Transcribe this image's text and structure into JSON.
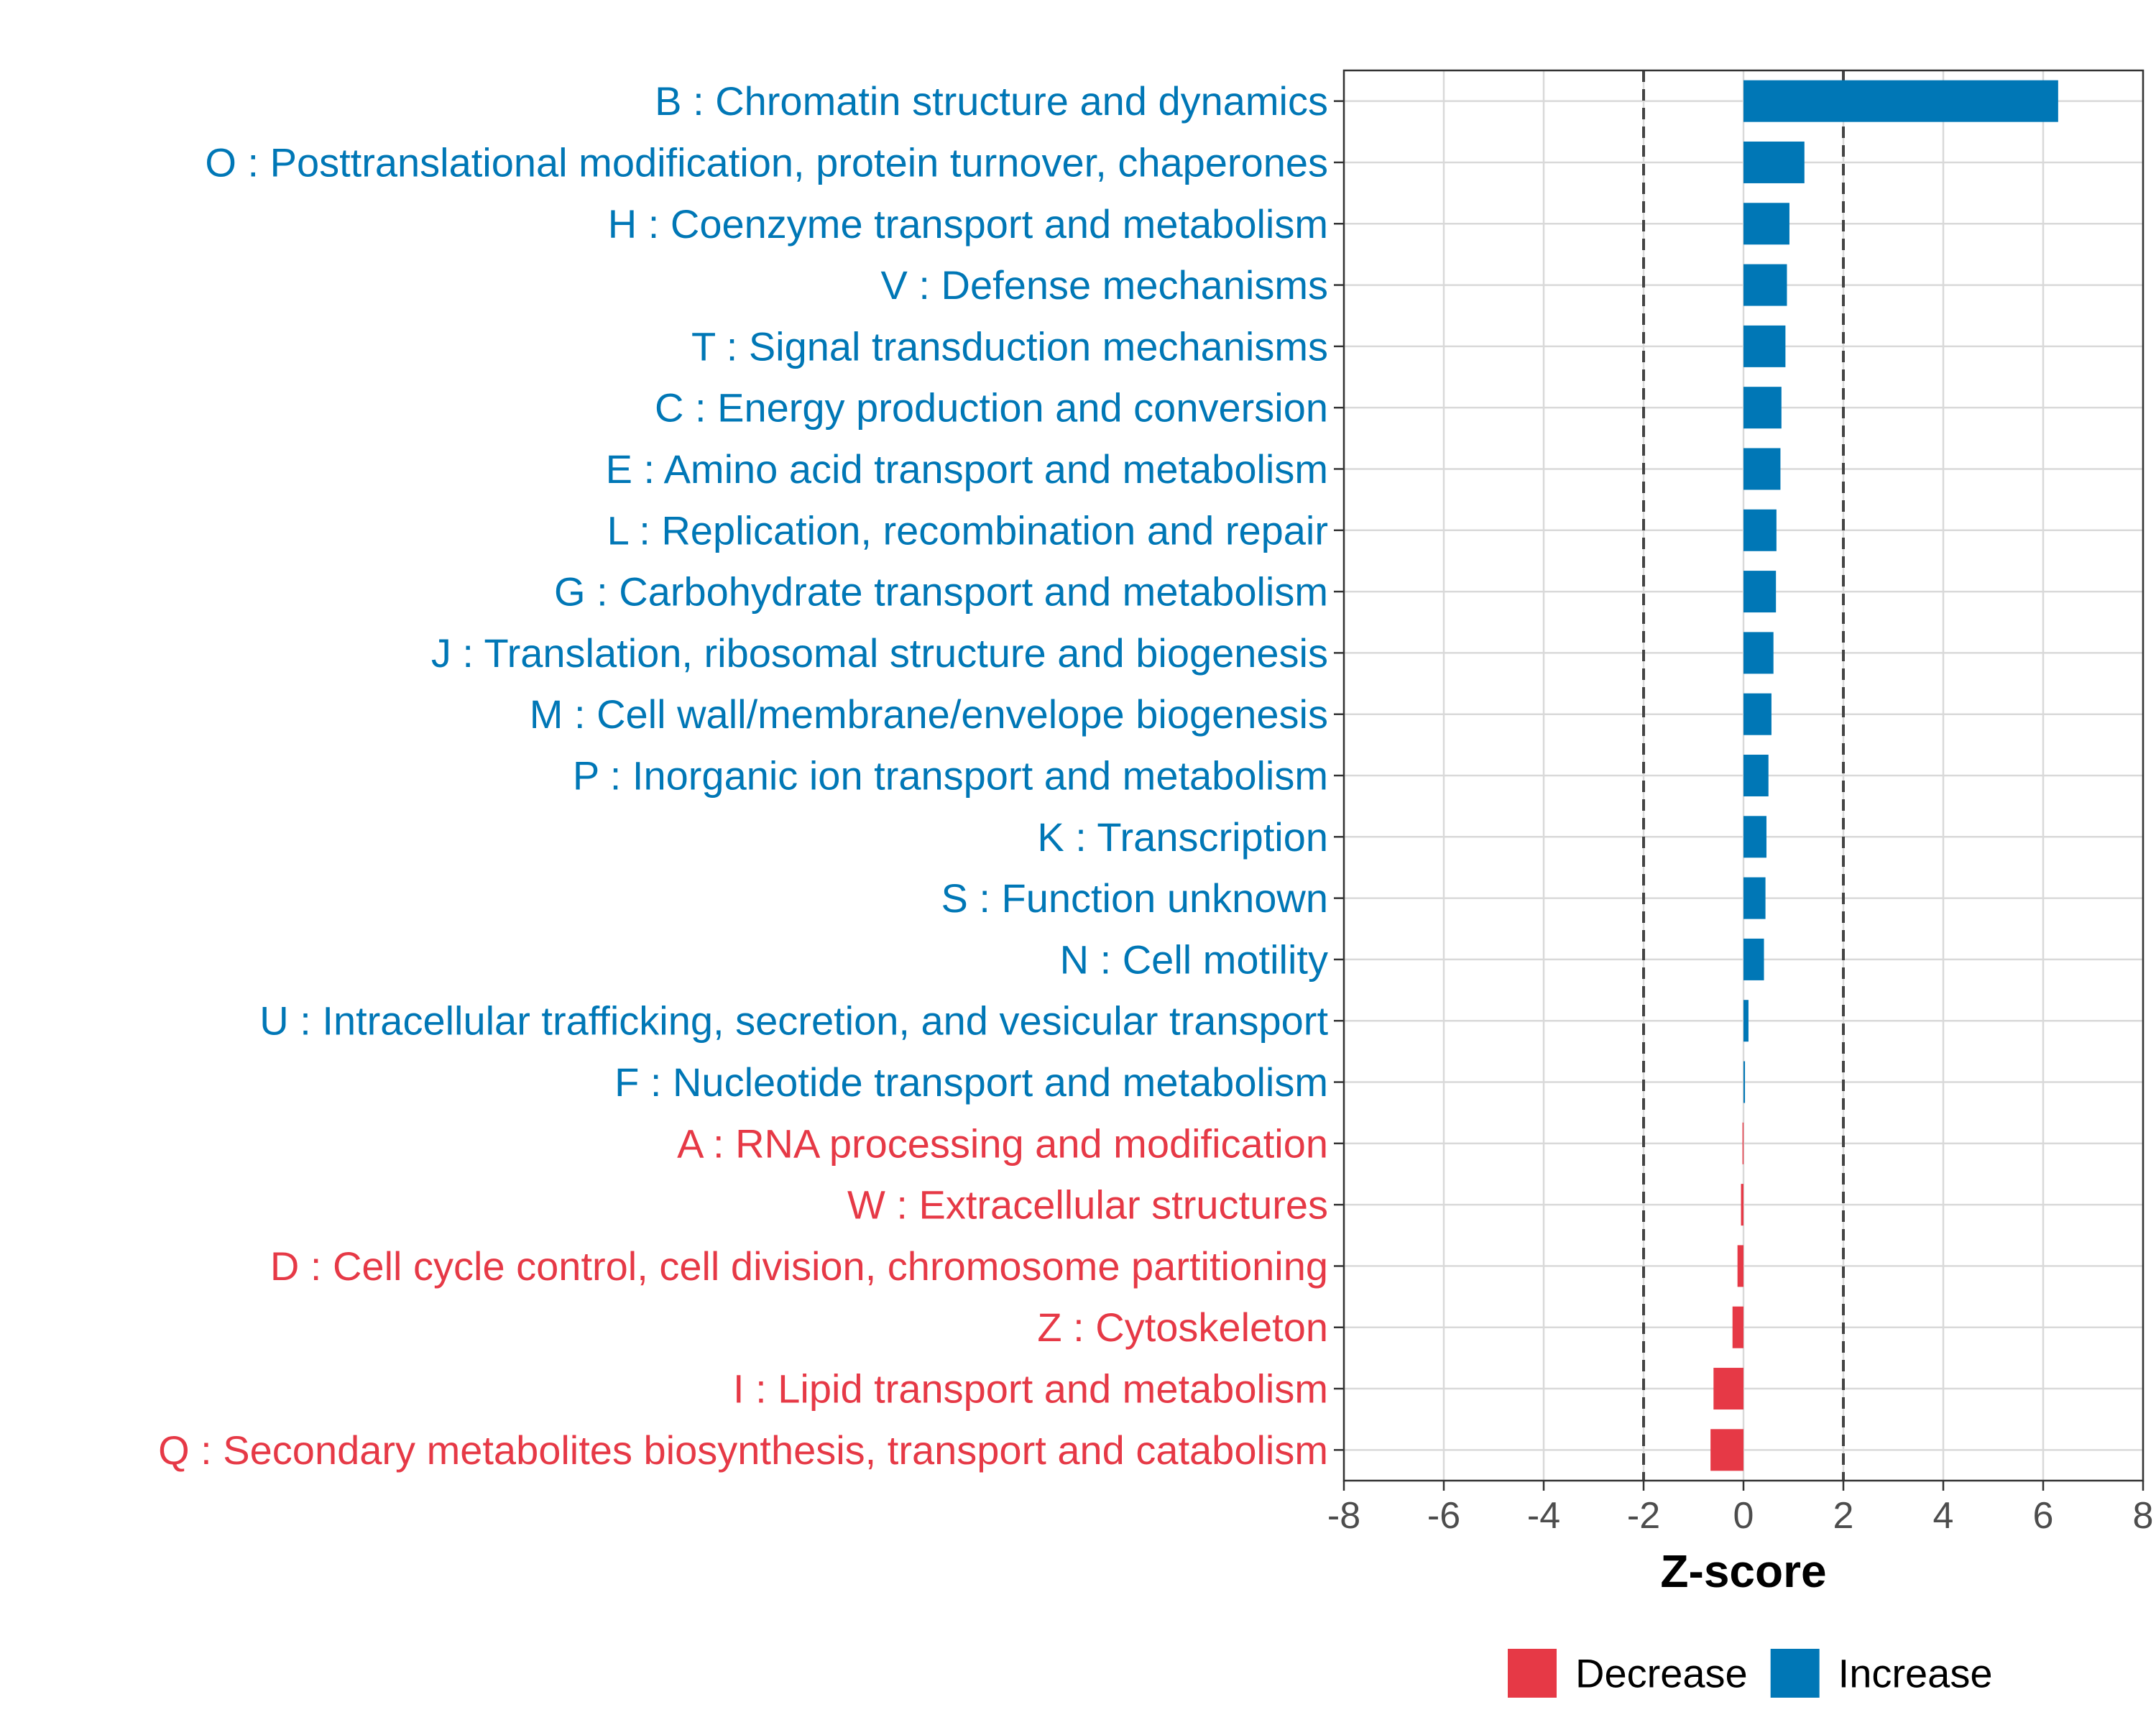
{
  "chart_data": {
    "type": "bar",
    "orientation": "horizontal",
    "xlabel": "Z-score",
    "ylabel": "",
    "xlim": [
      -8,
      8
    ],
    "x_ticks": [
      "-8",
      "-6",
      "-4",
      "-2",
      "0",
      "2",
      "4",
      "6",
      "8"
    ],
    "threshold_lines": [
      -2,
      2
    ],
    "grid": true,
    "legend": {
      "position": "bottom-right",
      "entries": [
        {
          "label": "Decrease",
          "color": "#e63946"
        },
        {
          "label": "Increase",
          "color": "#0077b6"
        }
      ]
    },
    "colors": {
      "Decrease": "#e63946",
      "Increase": "#0077b6"
    },
    "bars": [
      {
        "label": "B : Chromatin structure and dynamics",
        "value": 6.3,
        "group": "Increase"
      },
      {
        "label": "O : Posttranslational modification, protein turnover, chaperones",
        "value": 1.22,
        "group": "Increase"
      },
      {
        "label": "H : Coenzyme transport and metabolism",
        "value": 0.92,
        "group": "Increase"
      },
      {
        "label": "V : Defense mechanisms",
        "value": 0.87,
        "group": "Increase"
      },
      {
        "label": "T : Signal transduction mechanisms",
        "value": 0.84,
        "group": "Increase"
      },
      {
        "label": "C : Energy production and conversion",
        "value": 0.76,
        "group": "Increase"
      },
      {
        "label": "E : Amino acid transport and metabolism",
        "value": 0.74,
        "group": "Increase"
      },
      {
        "label": "L : Replication, recombination and repair",
        "value": 0.66,
        "group": "Increase"
      },
      {
        "label": "G : Carbohydrate transport and metabolism",
        "value": 0.65,
        "group": "Increase"
      },
      {
        "label": "J : Translation, ribosomal structure and biogenesis",
        "value": 0.6,
        "group": "Increase"
      },
      {
        "label": "M : Cell wall/membrane/envelope biogenesis",
        "value": 0.56,
        "group": "Increase"
      },
      {
        "label": "P : Inorganic ion transport and metabolism",
        "value": 0.5,
        "group": "Increase"
      },
      {
        "label": "K : Transcription",
        "value": 0.46,
        "group": "Increase"
      },
      {
        "label": "S : Function unknown",
        "value": 0.44,
        "group": "Increase"
      },
      {
        "label": "N : Cell motility",
        "value": 0.41,
        "group": "Increase"
      },
      {
        "label": "U : Intracellular trafficking, secretion, and vesicular transport",
        "value": 0.1,
        "group": "Increase"
      },
      {
        "label": "F : Nucleotide transport and metabolism",
        "value": 0.03,
        "group": "Increase"
      },
      {
        "label": "A : RNA processing and modification",
        "value": -0.02,
        "group": "Decrease"
      },
      {
        "label": "W : Extracellular structures",
        "value": -0.05,
        "group": "Decrease"
      },
      {
        "label": "D : Cell cycle control, cell division, chromosome partitioning",
        "value": -0.12,
        "group": "Decrease"
      },
      {
        "label": "Z : Cytoskeleton",
        "value": -0.22,
        "group": "Decrease"
      },
      {
        "label": "I : Lipid transport and metabolism",
        "value": -0.6,
        "group": "Decrease"
      },
      {
        "label": "Q : Secondary metabolites biosynthesis, transport and catabolism",
        "value": -0.66,
        "group": "Decrease"
      }
    ]
  }
}
